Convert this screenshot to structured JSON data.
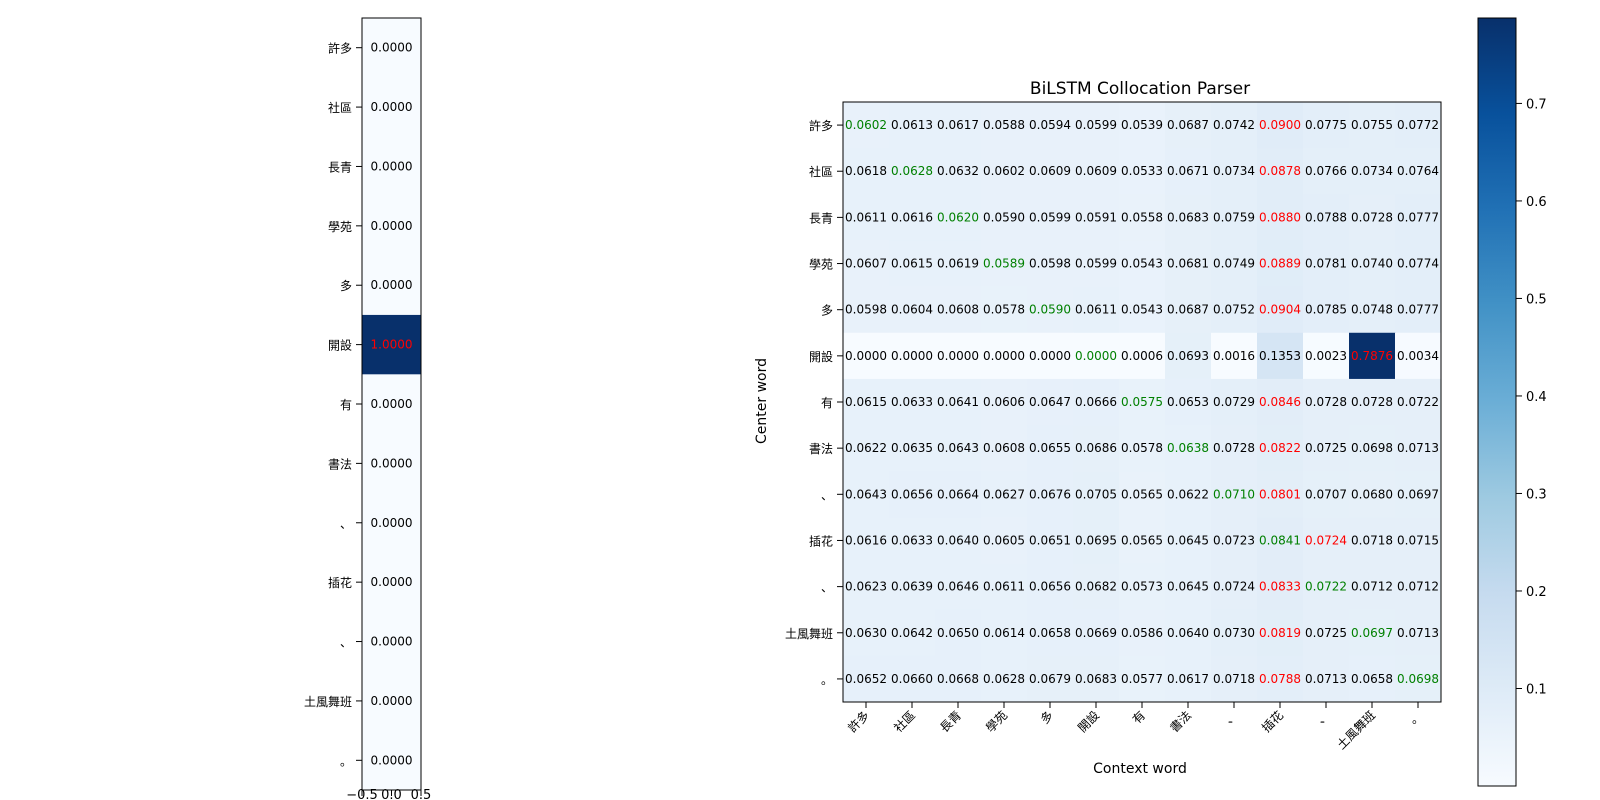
{
  "chart_data": [
    {
      "type": "heatmap",
      "rows": [
        "許多",
        "社區",
        "長青",
        "學苑",
        "多",
        "開設",
        "有",
        "書法",
        "、",
        "插花",
        "、",
        "土風舞班",
        "。"
      ],
      "columns": [
        ""
      ],
      "values": [
        [
          0.0
        ],
        [
          0.0
        ],
        [
          0.0
        ],
        [
          0.0
        ],
        [
          0.0
        ],
        [
          1.0
        ],
        [
          0.0
        ],
        [
          0.0
        ],
        [
          0.0
        ],
        [
          0.0
        ],
        [
          0.0
        ],
        [
          0.0
        ],
        [
          0.0
        ]
      ],
      "cell_labels": [
        [
          "0.0000"
        ],
        [
          "0.0000"
        ],
        [
          "0.0000"
        ],
        [
          "0.0000"
        ],
        [
          "0.0000"
        ],
        [
          "1.0000"
        ],
        [
          "0.0000"
        ],
        [
          "0.0000"
        ],
        [
          "0.0000"
        ],
        [
          "0.0000"
        ],
        [
          "0.0000"
        ],
        [
          "0.0000"
        ],
        [
          "0.0000"
        ]
      ],
      "highlight": {
        "row": 5,
        "col": 0,
        "color": "#ff0000"
      },
      "x_ticks": [
        "−0.5",
        "0.0",
        "0.5"
      ],
      "colormap": "Blues",
      "vmin": 0.0,
      "vmax": 1.0
    },
    {
      "type": "heatmap",
      "title": "BiLSTM Collocation Parser",
      "xlabel": "Context word",
      "ylabel": "Center word",
      "rows": [
        "許多",
        "社區",
        "長青",
        "學苑",
        "多",
        "開設",
        "有",
        "書法",
        "、",
        "插花",
        "、",
        "土風舞班",
        "。"
      ],
      "columns": [
        "許多",
        "社區",
        "長青",
        "學苑",
        "多",
        "開設",
        "有",
        "書法",
        "、",
        "插花",
        "、",
        "土風舞班",
        "。"
      ],
      "values": [
        [
          0.0602,
          0.0613,
          0.0617,
          0.0588,
          0.0594,
          0.0599,
          0.0539,
          0.0687,
          0.0742,
          0.09,
          0.0775,
          0.0755,
          0.0772
        ],
        [
          0.0618,
          0.0628,
          0.0632,
          0.0602,
          0.0609,
          0.0609,
          0.0533,
          0.0671,
          0.0734,
          0.0878,
          0.0766,
          0.0734,
          0.0764
        ],
        [
          0.0611,
          0.0616,
          0.062,
          0.059,
          0.0599,
          0.0591,
          0.0558,
          0.0683,
          0.0759,
          0.088,
          0.0788,
          0.0728,
          0.0777
        ],
        [
          0.0607,
          0.0615,
          0.0619,
          0.0589,
          0.0598,
          0.0599,
          0.0543,
          0.0681,
          0.0749,
          0.0889,
          0.0781,
          0.074,
          0.0774
        ],
        [
          0.0598,
          0.0604,
          0.0608,
          0.0578,
          0.059,
          0.0611,
          0.0543,
          0.0687,
          0.0752,
          0.0904,
          0.0785,
          0.0748,
          0.0777
        ],
        [
          0.0,
          0.0,
          0.0,
          0.0,
          0.0,
          0.0,
          0.0006,
          0.0693,
          0.0016,
          0.1353,
          0.0023,
          0.7876,
          0.0034
        ],
        [
          0.0615,
          0.0633,
          0.0641,
          0.0606,
          0.0647,
          0.0666,
          0.0575,
          0.0653,
          0.0729,
          0.0846,
          0.0728,
          0.0728,
          0.0722
        ],
        [
          0.0622,
          0.0635,
          0.0643,
          0.0608,
          0.0655,
          0.0686,
          0.0578,
          0.0638,
          0.0728,
          0.0822,
          0.0725,
          0.0698,
          0.0713
        ],
        [
          0.0643,
          0.0656,
          0.0664,
          0.0627,
          0.0676,
          0.0705,
          0.0565,
          0.0622,
          0.071,
          0.0801,
          0.0707,
          0.068,
          0.0697
        ],
        [
          0.0616,
          0.0633,
          0.064,
          0.0605,
          0.0651,
          0.0695,
          0.0565,
          0.0645,
          0.0723,
          0.0841,
          0.0724,
          0.0718,
          0.0715
        ],
        [
          0.0623,
          0.0639,
          0.0646,
          0.0611,
          0.0656,
          0.0682,
          0.0573,
          0.0645,
          0.0724,
          0.0833,
          0.0722,
          0.0712,
          0.0712
        ],
        [
          0.063,
          0.0642,
          0.065,
          0.0614,
          0.0658,
          0.0669,
          0.0586,
          0.064,
          0.073,
          0.0819,
          0.0725,
          0.0697,
          0.0713
        ],
        [
          0.0652,
          0.066,
          0.0668,
          0.0628,
          0.0679,
          0.0683,
          0.0577,
          0.0617,
          0.0718,
          0.0788,
          0.0713,
          0.0658,
          0.0698
        ]
      ],
      "cell_labels": [
        [
          "0.0602",
          "0.0613",
          "0.0617",
          "0.0588",
          "0.0594",
          "0.0599",
          "0.0539",
          "0.0687",
          "0.0742",
          "0.0900",
          "0.0775",
          "0.0755",
          "0.0772"
        ],
        [
          "0.0618",
          "0.0628",
          "0.0632",
          "0.0602",
          "0.0609",
          "0.0609",
          "0.0533",
          "0.0671",
          "0.0734",
          "0.0878",
          "0.0766",
          "0.0734",
          "0.0764"
        ],
        [
          "0.0611",
          "0.0616",
          "0.0620",
          "0.0590",
          "0.0599",
          "0.0591",
          "0.0558",
          "0.0683",
          "0.0759",
          "0.0880",
          "0.0788",
          "0.0728",
          "0.0777"
        ],
        [
          "0.0607",
          "0.0615",
          "0.0619",
          "0.0589",
          "0.0598",
          "0.0599",
          "0.0543",
          "0.0681",
          "0.0749",
          "0.0889",
          "0.0781",
          "0.0740",
          "0.0774"
        ],
        [
          "0.0598",
          "0.0604",
          "0.0608",
          "0.0578",
          "0.0590",
          "0.0611",
          "0.0543",
          "0.0687",
          "0.0752",
          "0.0904",
          "0.0785",
          "0.0748",
          "0.0777"
        ],
        [
          "0.0000",
          "0.0000",
          "0.0000",
          "0.0000",
          "0.0000",
          "0.0000",
          "0.0006",
          "0.0693",
          "0.0016",
          "0.1353",
          "0.0023",
          "0.7876",
          "0.0034"
        ],
        [
          "0.0615",
          "0.0633",
          "0.0641",
          "0.0606",
          "0.0647",
          "0.0666",
          "0.0575",
          "0.0653",
          "0.0729",
          "0.0846",
          "0.0728",
          "0.0728",
          "0.0722"
        ],
        [
          "0.0622",
          "0.0635",
          "0.0643",
          "0.0608",
          "0.0655",
          "0.0686",
          "0.0578",
          "0.0638",
          "0.0728",
          "0.0822",
          "0.0725",
          "0.0698",
          "0.0713"
        ],
        [
          "0.0643",
          "0.0656",
          "0.0664",
          "0.0627",
          "0.0676",
          "0.0705",
          "0.0565",
          "0.0622",
          "0.0710",
          "0.0801",
          "0.0707",
          "0.0680",
          "0.0697"
        ],
        [
          "0.0616",
          "0.0633",
          "0.0640",
          "0.0605",
          "0.0651",
          "0.0695",
          "0.0565",
          "0.0645",
          "0.0723",
          "0.0841",
          "0.0724",
          "0.0718",
          "0.0715"
        ],
        [
          "0.0623",
          "0.0639",
          "0.0646",
          "0.0611",
          "0.0656",
          "0.0682",
          "0.0573",
          "0.0645",
          "0.0724",
          "0.0833",
          "0.0722",
          "0.0712",
          "0.0712"
        ],
        [
          "0.0630",
          "0.0642",
          "0.0650",
          "0.0614",
          "0.0658",
          "0.0669",
          "0.0586",
          "0.0640",
          "0.0730",
          "0.0819",
          "0.0725",
          "0.0697",
          "0.0713"
        ],
        [
          "0.0652",
          "0.0660",
          "0.0668",
          "0.0628",
          "0.0679",
          "0.0683",
          "0.0577",
          "0.0617",
          "0.0718",
          "0.0788",
          "0.0713",
          "0.0658",
          "0.0698"
        ]
      ],
      "green_cells": [
        [
          0,
          0
        ],
        [
          1,
          1
        ],
        [
          2,
          2
        ],
        [
          3,
          3
        ],
        [
          4,
          4
        ],
        [
          5,
          5
        ],
        [
          6,
          6
        ],
        [
          7,
          7
        ],
        [
          8,
          8
        ],
        [
          9,
          9
        ],
        [
          10,
          10
        ],
        [
          11,
          11
        ],
        [
          12,
          12
        ]
      ],
      "red_cells": [
        [
          0,
          9
        ],
        [
          1,
          9
        ],
        [
          2,
          9
        ],
        [
          3,
          9
        ],
        [
          4,
          9
        ],
        [
          5,
          11
        ],
        [
          6,
          9
        ],
        [
          7,
          9
        ],
        [
          8,
          9
        ],
        [
          9,
          10
        ],
        [
          10,
          9
        ],
        [
          11,
          9
        ],
        [
          12,
          9
        ]
      ],
      "green_color": "#008000",
      "red_color": "#ff0000",
      "colormap": "Blues",
      "vmin": 0.0,
      "vmax": 0.7876
    }
  ],
  "colorbar": {
    "ticks": [
      "0.1",
      "0.2",
      "0.3",
      "0.4",
      "0.5",
      "0.6",
      "0.7"
    ],
    "tick_values": [
      0.1,
      0.2,
      0.3,
      0.4,
      0.5,
      0.6,
      0.7
    ],
    "vmin": 0.0,
    "vmax": 0.7876
  }
}
